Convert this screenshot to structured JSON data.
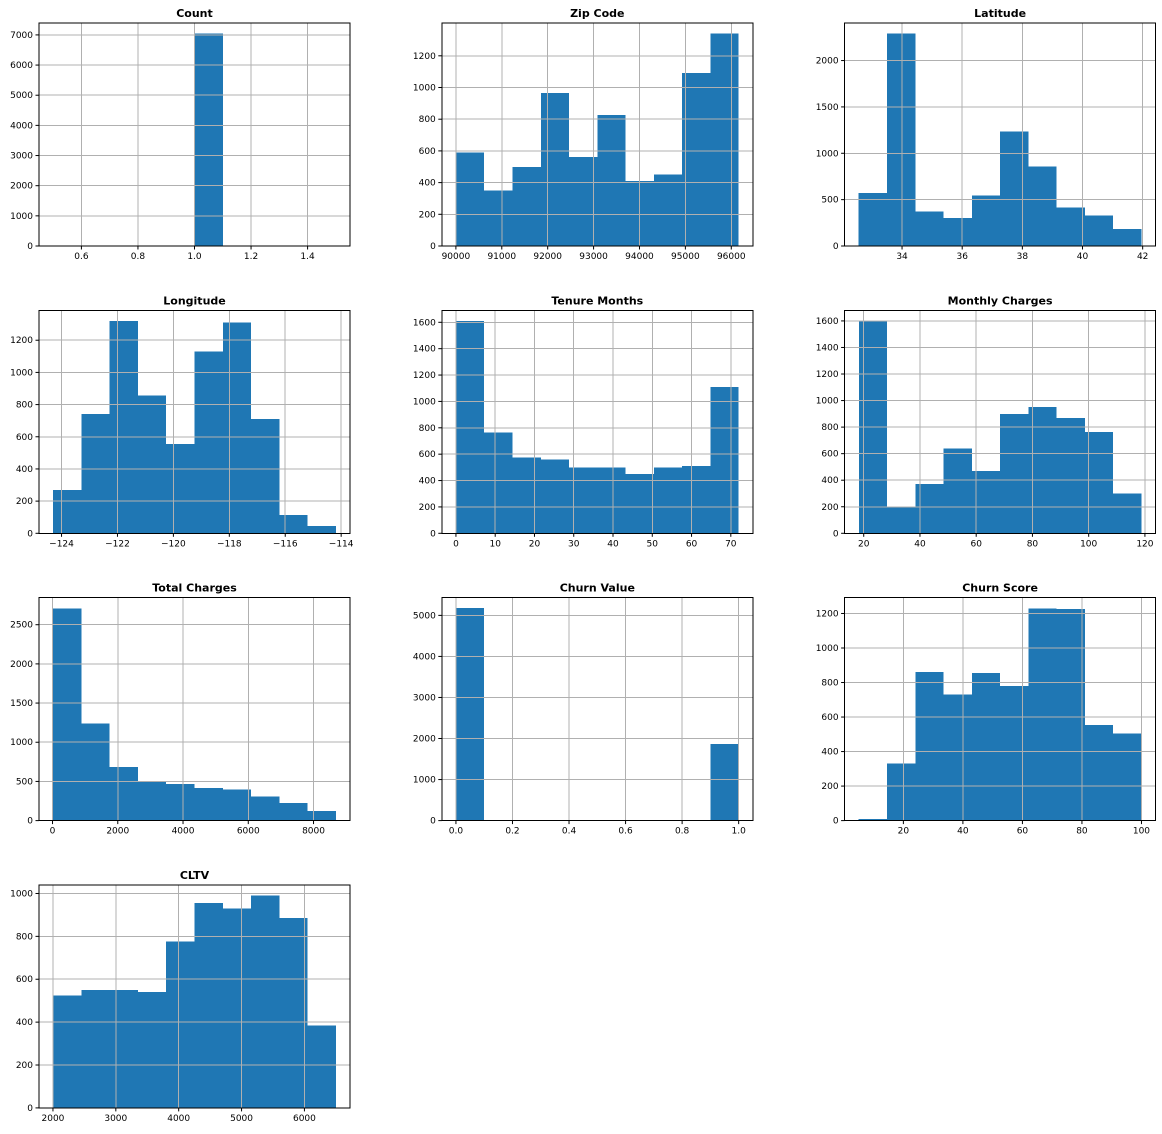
{
  "page": {
    "background_color": "#ffffff",
    "description": "Grid of histograms for numeric columns of a telco customer churn dataset"
  },
  "style": {
    "bar_color": "#1f77b4",
    "grid_color": "#b0b0b0",
    "spine_color": "#000000",
    "text_color": "#000000"
  },
  "chart_data": [
    {
      "type": "bar",
      "chart_kind": "histogram",
      "slug": "count",
      "title": "Count",
      "xlabel": "",
      "ylabel": "",
      "grid": true,
      "legend": "none",
      "bin_start": 0.5,
      "bin_end": 1.5,
      "values": [
        0,
        0,
        0,
        0,
        0,
        7043,
        0,
        0,
        0,
        0
      ],
      "xlim": [
        0.45,
        1.55
      ],
      "ylim": [
        0,
        7395
      ],
      "xticks": {
        "values": [
          0.6,
          0.8,
          1.0,
          1.2,
          1.4
        ],
        "labels": [
          "0.6",
          "0.8",
          "1.0",
          "1.2",
          "1.4"
        ]
      },
      "yticks": {
        "values": [
          0,
          1000,
          2000,
          3000,
          4000,
          5000,
          6000,
          7000
        ],
        "labels": [
          "0",
          "1000",
          "2000",
          "3000",
          "4000",
          "5000",
          "6000",
          "7000"
        ]
      }
    },
    {
      "type": "bar",
      "chart_kind": "histogram",
      "slug": "zip-code",
      "title": "Zip Code",
      "xlabel": "",
      "ylabel": "",
      "grid": true,
      "legend": "none",
      "bin_start": 90001,
      "bin_end": 96161,
      "values": [
        590,
        350,
        500,
        965,
        560,
        825,
        410,
        450,
        1090,
        1340
      ],
      "xlim": [
        89693,
        96469
      ],
      "ylim": [
        0,
        1407
      ],
      "xticks": {
        "values": [
          90000,
          91000,
          92000,
          93000,
          94000,
          95000,
          96000
        ],
        "labels": [
          "90000",
          "91000",
          "92000",
          "93000",
          "94000",
          "95000",
          "96000"
        ]
      },
      "yticks": {
        "values": [
          0,
          200,
          400,
          600,
          800,
          1000,
          1200
        ],
        "labels": [
          "0",
          "200",
          "400",
          "600",
          "800",
          "1000",
          "1200"
        ]
      }
    },
    {
      "type": "bar",
      "chart_kind": "histogram",
      "slug": "latitude",
      "title": "Latitude",
      "xlabel": "",
      "ylabel": "",
      "grid": true,
      "legend": "none",
      "bin_start": 32.56,
      "bin_end": 41.96,
      "values": [
        570,
        2290,
        370,
        300,
        545,
        1235,
        855,
        415,
        330,
        185
      ],
      "xlim": [
        32.09,
        42.43
      ],
      "ylim": [
        0,
        2405
      ],
      "xticks": {
        "values": [
          34,
          36,
          38,
          40,
          42
        ],
        "labels": [
          "34",
          "36",
          "38",
          "40",
          "42"
        ]
      },
      "yticks": {
        "values": [
          0,
          500,
          1000,
          1500,
          2000
        ],
        "labels": [
          "0",
          "500",
          "1000",
          "1500",
          "2000"
        ]
      }
    },
    {
      "type": "bar",
      "chart_kind": "histogram",
      "slug": "longitude",
      "title": "Longitude",
      "xlabel": "",
      "ylabel": "",
      "grid": true,
      "legend": "none",
      "bin_start": -124.3,
      "bin_end": -114.19,
      "values": [
        270,
        740,
        1320,
        855,
        555,
        1130,
        1310,
        710,
        115,
        45
      ],
      "xlim": [
        -124.806,
        -113.684
      ],
      "ylim": [
        0,
        1386
      ],
      "xticks": {
        "values": [
          -124,
          -122,
          -120,
          -118,
          -116,
          -114
        ],
        "labels": [
          "−124",
          "−122",
          "−120",
          "−118",
          "−116",
          "−114"
        ]
      },
      "yticks": {
        "values": [
          0,
          200,
          400,
          600,
          800,
          1000,
          1200
        ],
        "labels": [
          "0",
          "200",
          "400",
          "600",
          "800",
          "1000",
          "1200"
        ]
      }
    },
    {
      "type": "bar",
      "chart_kind": "histogram",
      "slug": "tenure-months",
      "title": "Tenure Months",
      "xlabel": "",
      "ylabel": "",
      "grid": true,
      "legend": "none",
      "bin_start": 0,
      "bin_end": 72,
      "values": [
        1610,
        765,
        575,
        560,
        500,
        500,
        450,
        500,
        510,
        1110
      ],
      "xlim": [
        -3.6,
        75.6
      ],
      "ylim": [
        0,
        1691
      ],
      "xticks": {
        "values": [
          0,
          10,
          20,
          30,
          40,
          50,
          60,
          70
        ],
        "labels": [
          "0",
          "10",
          "20",
          "30",
          "40",
          "50",
          "60",
          "70"
        ]
      },
      "yticks": {
        "values": [
          0,
          200,
          400,
          600,
          800,
          1000,
          1200,
          1400,
          1600
        ],
        "labels": [
          "0",
          "200",
          "400",
          "600",
          "800",
          "1000",
          "1200",
          "1400",
          "1600"
        ]
      }
    },
    {
      "type": "bar",
      "chart_kind": "histogram",
      "slug": "monthly-charges",
      "title": "Monthly Charges",
      "xlabel": "",
      "ylabel": "",
      "grid": true,
      "legend": "none",
      "bin_start": 18.25,
      "bin_end": 118.75,
      "values": [
        1600,
        195,
        370,
        640,
        470,
        900,
        950,
        870,
        765,
        300
      ],
      "xlim": [
        13.2,
        123.8
      ],
      "ylim": [
        0,
        1680
      ],
      "xticks": {
        "values": [
          20,
          40,
          60,
          80,
          100,
          120
        ],
        "labels": [
          "20",
          "40",
          "60",
          "80",
          "100",
          "120"
        ]
      },
      "yticks": {
        "values": [
          0,
          200,
          400,
          600,
          800,
          1000,
          1200,
          1400,
          1600
        ],
        "labels": [
          "0",
          "200",
          "400",
          "600",
          "800",
          "1000",
          "1200",
          "1400",
          "1600"
        ]
      }
    },
    {
      "type": "bar",
      "chart_kind": "histogram",
      "slug": "total-charges",
      "title": "Total Charges",
      "xlabel": "",
      "ylabel": "",
      "grid": true,
      "legend": "none",
      "bin_start": 18.8,
      "bin_end": 8684.8,
      "values": [
        2710,
        1240,
        685,
        490,
        465,
        415,
        400,
        310,
        225,
        120
      ],
      "xlim": [
        -414.5,
        9118.1
      ],
      "ylim": [
        0,
        2846
      ],
      "xticks": {
        "values": [
          0,
          2000,
          4000,
          6000,
          8000
        ],
        "labels": [
          "0",
          "2000",
          "4000",
          "6000",
          "8000"
        ]
      },
      "yticks": {
        "values": [
          0,
          500,
          1000,
          1500,
          2000,
          2500
        ],
        "labels": [
          "0",
          "500",
          "1000",
          "1500",
          "2000",
          "2500"
        ]
      }
    },
    {
      "type": "bar",
      "chart_kind": "histogram",
      "slug": "churn-value",
      "title": "Churn Value",
      "xlabel": "",
      "ylabel": "",
      "grid": true,
      "legend": "none",
      "bin_start": 0,
      "bin_end": 1,
      "values": [
        5174,
        0,
        0,
        0,
        0,
        0,
        0,
        0,
        0,
        1869
      ],
      "xlim": [
        -0.05,
        1.05
      ],
      "ylim": [
        0,
        5433
      ],
      "xticks": {
        "values": [
          0.0,
          0.2,
          0.4,
          0.6,
          0.8,
          1.0
        ],
        "labels": [
          "0.0",
          "0.2",
          "0.4",
          "0.6",
          "0.8",
          "1.0"
        ]
      },
      "yticks": {
        "values": [
          0,
          1000,
          2000,
          3000,
          4000,
          5000
        ],
        "labels": [
          "0",
          "1000",
          "2000",
          "3000",
          "4000",
          "5000"
        ]
      }
    },
    {
      "type": "bar",
      "chart_kind": "histogram",
      "slug": "churn-score",
      "title": "Churn Score",
      "xlabel": "",
      "ylabel": "",
      "grid": true,
      "legend": "none",
      "bin_start": 5,
      "bin_end": 100,
      "values": [
        8,
        330,
        860,
        730,
        855,
        780,
        1230,
        1225,
        555,
        505
      ],
      "xlim": [
        0.25,
        104.75
      ],
      "ylim": [
        0,
        1292
      ],
      "xticks": {
        "values": [
          20,
          40,
          60,
          80,
          100
        ],
        "labels": [
          "20",
          "40",
          "60",
          "80",
          "100"
        ]
      },
      "yticks": {
        "values": [
          0,
          200,
          400,
          600,
          800,
          1000,
          1200
        ],
        "labels": [
          "0",
          "200",
          "400",
          "600",
          "800",
          "1000",
          "1200"
        ]
      }
    },
    {
      "type": "bar",
      "chart_kind": "histogram",
      "slug": "cltv",
      "title": "CLTV",
      "xlabel": "",
      "ylabel": "",
      "grid": true,
      "legend": "none",
      "bin_start": 2003,
      "bin_end": 6500,
      "values": [
        525,
        550,
        550,
        540,
        775,
        955,
        930,
        990,
        885,
        385
      ],
      "xlim": [
        1778,
        6725
      ],
      "ylim": [
        0,
        1040
      ],
      "xticks": {
        "values": [
          2000,
          3000,
          4000,
          5000,
          6000
        ],
        "labels": [
          "2000",
          "3000",
          "4000",
          "5000",
          "6000"
        ]
      },
      "yticks": {
        "values": [
          0,
          200,
          400,
          600,
          800,
          1000
        ],
        "labels": [
          "0",
          "200",
          "400",
          "600",
          "800",
          "1000"
        ]
      }
    }
  ]
}
